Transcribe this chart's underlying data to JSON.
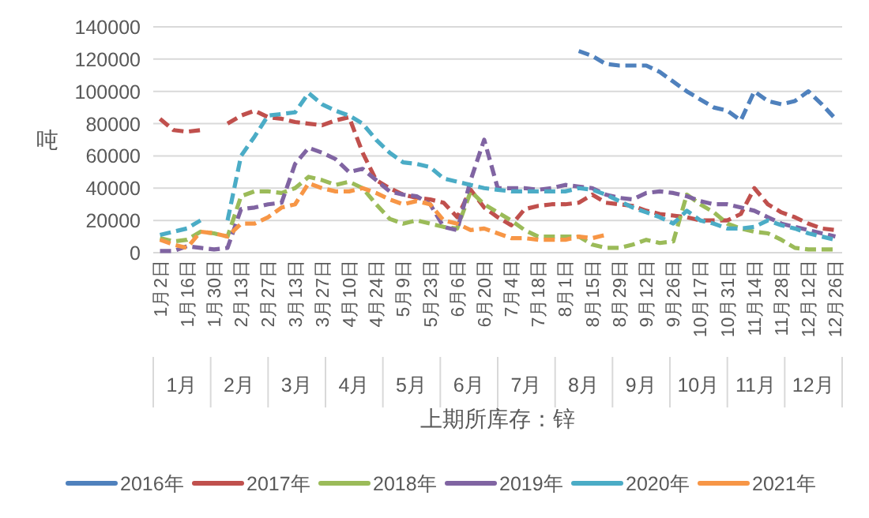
{
  "chart_data": {
    "type": "line",
    "xlabel": "上期所库存：锌",
    "ylabel": "吨",
    "categories": [
      "1月2日",
      null,
      "1月16日",
      null,
      "1月30日",
      null,
      "2月13日",
      null,
      "2月27日",
      null,
      "3月13日",
      null,
      "3月27日",
      null,
      "4月10日",
      null,
      "4月24日",
      null,
      "5月9日",
      null,
      "5月23日",
      null,
      "6月6日",
      null,
      "6月20日",
      null,
      "7月4日",
      null,
      "7月18日",
      null,
      "8月1日",
      null,
      "8月15日",
      null,
      "8月29日",
      null,
      "9月12日",
      null,
      "9月26日",
      null,
      "10月17日",
      null,
      "10月31日",
      null,
      "11月14日",
      null,
      "11月28日",
      null,
      "12月12日",
      null,
      "12月26日"
    ],
    "series": [
      {
        "name": "2016年",
        "color": "#4f81bd",
        "values": [
          null,
          null,
          null,
          null,
          null,
          null,
          null,
          null,
          null,
          null,
          null,
          null,
          null,
          null,
          null,
          null,
          null,
          null,
          null,
          null,
          null,
          null,
          null,
          null,
          null,
          null,
          null,
          null,
          null,
          null,
          null,
          125000,
          122000,
          117000,
          116000,
          116000,
          116000,
          112000,
          106000,
          100000,
          95000,
          90000,
          88000,
          82000,
          100000,
          94000,
          92000,
          94000,
          100000,
          92000,
          83000
        ]
      },
      {
        "name": "2017年",
        "color": "#c0504d",
        "values": [
          83000,
          76000,
          75000,
          76000,
          null,
          80000,
          85000,
          88000,
          84000,
          83000,
          81000,
          80000,
          79000,
          82000,
          84000,
          62000,
          45000,
          40000,
          36000,
          34000,
          33000,
          31000,
          22000,
          39000,
          28000,
          22000,
          17000,
          27000,
          29000,
          30000,
          30000,
          31000,
          36000,
          31000,
          30000,
          29000,
          26000,
          24000,
          23000,
          22000,
          20000,
          20000,
          20000,
          24000,
          40000,
          30000,
          25000,
          22000,
          18000,
          15000,
          14000
        ]
      },
      {
        "name": "2018年",
        "color": "#9bbb59",
        "values": [
          9000,
          7000,
          8000,
          13000,
          12000,
          10000,
          35000,
          38000,
          38000,
          37000,
          40000,
          47000,
          45000,
          42000,
          44000,
          40000,
          30000,
          21000,
          18000,
          20000,
          18000,
          16000,
          15000,
          38000,
          30000,
          25000,
          20000,
          14000,
          10000,
          10000,
          10000,
          10000,
          5000,
          3000,
          3000,
          5000,
          8000,
          6000,
          7000,
          36000,
          30000,
          25000,
          18000,
          15000,
          13000,
          12000,
          8000,
          3000,
          2000,
          2000,
          2000
        ]
      },
      {
        "name": "2019年",
        "color": "#8064a2",
        "values": [
          1000,
          1000,
          4000,
          3000,
          2000,
          3000,
          27000,
          28000,
          30000,
          31000,
          55000,
          65000,
          62000,
          58000,
          50000,
          52000,
          45000,
          38000,
          36000,
          35000,
          30000,
          16000,
          14000,
          45000,
          70000,
          40000,
          40000,
          40000,
          39000,
          40000,
          42000,
          41000,
          40000,
          36000,
          34000,
          33000,
          37000,
          38000,
          37000,
          35000,
          32000,
          30000,
          30000,
          28000,
          26000,
          22000,
          18000,
          16000,
          14000,
          12000,
          10000
        ]
      },
      {
        "name": "2020年",
        "color": "#4bacc6",
        "values": [
          11000,
          13000,
          15000,
          20000,
          null,
          20000,
          60000,
          72000,
          85000,
          86000,
          87000,
          99000,
          92000,
          88000,
          85000,
          80000,
          70000,
          62000,
          56000,
          55000,
          53000,
          46000,
          44000,
          42000,
          40000,
          39000,
          38000,
          38000,
          38000,
          38000,
          38000,
          40000,
          39000,
          36000,
          32000,
          28000,
          25000,
          22000,
          18000,
          26000,
          20000,
          18000,
          15000,
          15000,
          16000,
          20000,
          17000,
          15000,
          12000,
          10000,
          8000
        ]
      },
      {
        "name": "2021年",
        "color": "#f79646",
        "values": [
          8000,
          5000,
          3000,
          13000,
          12000,
          10000,
          18000,
          18000,
          22000,
          28000,
          30000,
          43000,
          40000,
          38000,
          38000,
          40000,
          37000,
          33000,
          30000,
          32000,
          30000,
          20000,
          18000,
          14000,
          15000,
          12000,
          9000,
          9000,
          8000,
          8000,
          8000,
          10000,
          9000,
          11000,
          null,
          null,
          null,
          null,
          null,
          null,
          null,
          null,
          null,
          null,
          null,
          null,
          null,
          null,
          null,
          null,
          null
        ]
      }
    ],
    "ylim": [
      0,
      140000
    ],
    "yticks": [
      0,
      20000,
      40000,
      60000,
      80000,
      100000,
      120000,
      140000
    ],
    "grid": "y",
    "legend": "bottom",
    "line_style": "dashed",
    "marker": "none",
    "annotations": [
      "1月",
      "2月",
      "3月",
      "4月",
      "5月",
      "6月",
      "7月",
      "8月",
      "9月",
      "10月",
      "11月",
      "12月"
    ]
  }
}
